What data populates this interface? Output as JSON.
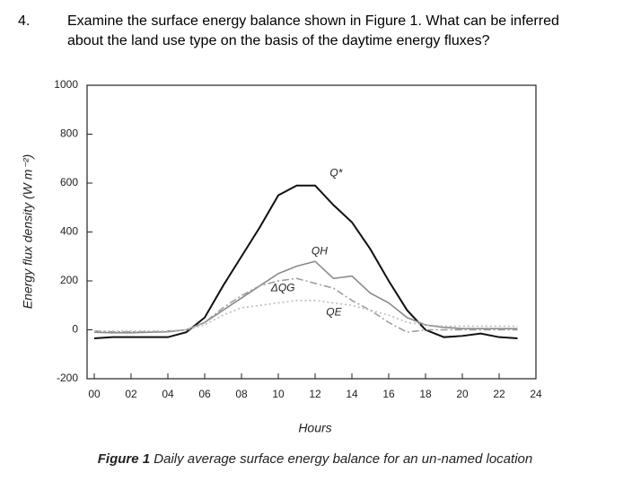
{
  "question": {
    "number": "4.",
    "lines": [
      "Examine the surface energy balance shown in Figure 1.   What can be inferred",
      "about the land use type on the basis of the daytime energy fluxes?"
    ]
  },
  "chart_data": {
    "type": "line",
    "x_label": "Hours",
    "y_label": "Energy flux density (W m⁻²)",
    "x": [
      0,
      1,
      2,
      3,
      4,
      5,
      6,
      7,
      8,
      9,
      10,
      11,
      12,
      13,
      14,
      15,
      16,
      17,
      18,
      19,
      20,
      21,
      22,
      23
    ],
    "series": [
      {
        "name": "Q*",
        "color": "#111111",
        "dash": "none",
        "width": 2,
        "values": [
          -35,
          -30,
          -30,
          -30,
          -30,
          -10,
          50,
          180,
          300,
          420,
          550,
          590,
          590,
          510,
          440,
          330,
          200,
          80,
          0,
          -30,
          -25,
          -15,
          -30,
          -35
        ]
      },
      {
        "name": "QH",
        "color": "#8a8a8a",
        "dash": "none",
        "width": 1.6,
        "values": [
          -10,
          -12,
          -12,
          -10,
          -8,
          0,
          30,
          80,
          130,
          180,
          230,
          260,
          280,
          210,
          220,
          150,
          110,
          50,
          20,
          10,
          5,
          5,
          5,
          5
        ]
      },
      {
        "name": "ΔQG",
        "color": "#9a9a9a",
        "dash": "8 3 2 3",
        "width": 1.5,
        "values": [
          -5,
          -8,
          -8,
          -8,
          -5,
          0,
          30,
          90,
          140,
          180,
          200,
          210,
          190,
          170,
          120,
          80,
          30,
          -10,
          0,
          0,
          0,
          0,
          0,
          0
        ]
      },
      {
        "name": "QE",
        "color": "#bbbbbb",
        "dash": "2 3",
        "width": 1.6,
        "values": [
          -5,
          -5,
          -5,
          -5,
          -5,
          0,
          20,
          60,
          90,
          100,
          110,
          120,
          120,
          110,
          100,
          80,
          60,
          30,
          20,
          15,
          15,
          15,
          15,
          15
        ]
      }
    ],
    "xlim": [
      0,
      24
    ],
    "xticks": [
      {
        "value": 0,
        "label": "00"
      },
      {
        "value": 2,
        "label": "02"
      },
      {
        "value": 4,
        "label": "04"
      },
      {
        "value": 6,
        "label": "06"
      },
      {
        "value": 8,
        "label": "08"
      },
      10,
      12,
      14,
      16,
      18,
      20,
      22,
      24
    ],
    "ylim": [
      -200,
      1000
    ],
    "yticks": [
      -200,
      0,
      200,
      400,
      600,
      800,
      1000
    ]
  },
  "caption": {
    "label": "Figure 1",
    "text": " Daily average surface energy balance for an un-named location"
  }
}
